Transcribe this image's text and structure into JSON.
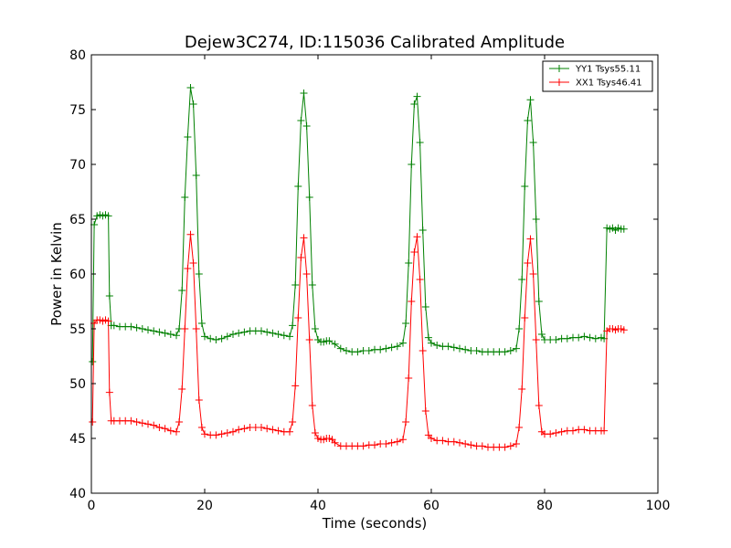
{
  "chart_data": {
    "type": "line",
    "title": "Dejew3C274, ID:115036 Calibrated Amplitude",
    "xlabel": "Time (seconds)",
    "ylabel": "Power in Kelvin",
    "xlim": [
      0,
      100
    ],
    "ylim": [
      40,
      80
    ],
    "xticks": [
      0,
      20,
      40,
      60,
      80,
      100
    ],
    "yticks": [
      40,
      45,
      50,
      55,
      60,
      65,
      70,
      75,
      80
    ],
    "grid": false,
    "legend_position": "top-right",
    "marker": "+",
    "series": [
      {
        "name": "YY1 Tsys55.11",
        "color": "#008000",
        "points": [
          [
            0.2,
            52
          ],
          [
            0.5,
            64.5
          ],
          [
            1.0,
            65.3
          ],
          [
            1.5,
            65.4
          ],
          [
            2.0,
            65.3
          ],
          [
            2.5,
            65.4
          ],
          [
            3.0,
            65.3
          ],
          [
            3.2,
            58
          ],
          [
            3.5,
            55.3
          ],
          [
            4,
            55.3
          ],
          [
            5,
            55.2
          ],
          [
            6,
            55.2
          ],
          [
            7,
            55.2
          ],
          [
            8,
            55.1
          ],
          [
            9,
            55.0
          ],
          [
            10,
            54.9
          ],
          [
            11,
            54.8
          ],
          [
            12,
            54.7
          ],
          [
            13,
            54.6
          ],
          [
            14,
            54.5
          ],
          [
            15,
            54.4
          ],
          [
            15.5,
            55.0
          ],
          [
            16,
            58.5
          ],
          [
            16.5,
            67
          ],
          [
            17,
            72.5
          ],
          [
            17.5,
            77
          ],
          [
            18,
            75.5
          ],
          [
            18.5,
            69
          ],
          [
            19,
            60
          ],
          [
            19.5,
            55.5
          ],
          [
            20,
            54.3
          ],
          [
            21,
            54.1
          ],
          [
            22,
            54.0
          ],
          [
            23,
            54.1
          ],
          [
            24,
            54.3
          ],
          [
            25,
            54.5
          ],
          [
            26,
            54.6
          ],
          [
            27,
            54.7
          ],
          [
            28,
            54.8
          ],
          [
            29,
            54.8
          ],
          [
            30,
            54.8
          ],
          [
            31,
            54.7
          ],
          [
            32,
            54.6
          ],
          [
            33,
            54.5
          ],
          [
            34,
            54.4
          ],
          [
            35,
            54.3
          ],
          [
            35.5,
            55.3
          ],
          [
            36,
            59
          ],
          [
            36.5,
            68
          ],
          [
            37,
            74
          ],
          [
            37.5,
            76.5
          ],
          [
            38,
            73.5
          ],
          [
            38.5,
            67
          ],
          [
            39,
            59
          ],
          [
            39.5,
            55
          ],
          [
            40,
            54.0
          ],
          [
            40.5,
            53.8
          ],
          [
            41,
            53.8
          ],
          [
            41.5,
            53.9
          ],
          [
            42,
            53.9
          ],
          [
            43,
            53.6
          ],
          [
            44,
            53.2
          ],
          [
            45,
            53.0
          ],
          [
            46,
            52.9
          ],
          [
            47,
            52.9
          ],
          [
            48,
            53.0
          ],
          [
            49,
            53.0
          ],
          [
            50,
            53.1
          ],
          [
            51,
            53.1
          ],
          [
            52,
            53.2
          ],
          [
            53,
            53.3
          ],
          [
            54,
            53.4
          ],
          [
            55,
            53.7
          ],
          [
            55.5,
            55.5
          ],
          [
            56,
            61
          ],
          [
            56.5,
            70
          ],
          [
            57,
            75.5
          ],
          [
            57.5,
            76.2
          ],
          [
            58,
            72
          ],
          [
            58.5,
            64
          ],
          [
            59,
            57
          ],
          [
            59.5,
            54.2
          ],
          [
            60,
            53.7
          ],
          [
            61,
            53.5
          ],
          [
            62,
            53.4
          ],
          [
            63,
            53.4
          ],
          [
            64,
            53.3
          ],
          [
            65,
            53.2
          ],
          [
            66,
            53.1
          ],
          [
            67,
            53.0
          ],
          [
            68,
            53.0
          ],
          [
            69,
            52.9
          ],
          [
            70,
            52.9
          ],
          [
            71,
            52.9
          ],
          [
            72,
            52.9
          ],
          [
            73,
            52.9
          ],
          [
            74,
            53.0
          ],
          [
            75,
            53.2
          ],
          [
            75.5,
            55.0
          ],
          [
            76,
            59.5
          ],
          [
            76.5,
            68
          ],
          [
            77,
            74
          ],
          [
            77.5,
            75.9
          ],
          [
            78,
            72
          ],
          [
            78.5,
            65
          ],
          [
            79,
            57.5
          ],
          [
            79.5,
            54.5
          ],
          [
            80,
            54.0
          ],
          [
            81,
            54.0
          ],
          [
            82,
            54.0
          ],
          [
            83,
            54.1
          ],
          [
            84,
            54.1
          ],
          [
            85,
            54.2
          ],
          [
            86,
            54.2
          ],
          [
            87,
            54.3
          ],
          [
            88,
            54.2
          ],
          [
            89,
            54.1
          ],
          [
            90,
            54.2
          ],
          [
            90.5,
            54.1
          ],
          [
            91,
            64.2
          ],
          [
            91.5,
            64.1
          ],
          [
            92,
            64.2
          ],
          [
            92.5,
            64.0
          ],
          [
            93,
            64.2
          ],
          [
            93.5,
            64.1
          ],
          [
            94,
            64.1
          ]
        ]
      },
      {
        "name": "XX1 Tsys46.41",
        "color": "#ff0000",
        "points": [
          [
            0.2,
            46.5
          ],
          [
            0.5,
            55.5
          ],
          [
            1.0,
            55.8
          ],
          [
            1.5,
            55.8
          ],
          [
            2.0,
            55.7
          ],
          [
            2.5,
            55.8
          ],
          [
            3.0,
            55.7
          ],
          [
            3.2,
            49.2
          ],
          [
            3.5,
            46.6
          ],
          [
            4,
            46.6
          ],
          [
            5,
            46.6
          ],
          [
            6,
            46.6
          ],
          [
            7,
            46.6
          ],
          [
            8,
            46.5
          ],
          [
            9,
            46.4
          ],
          [
            10,
            46.3
          ],
          [
            11,
            46.2
          ],
          [
            12,
            46.0
          ],
          [
            13,
            45.9
          ],
          [
            14,
            45.7
          ],
          [
            15,
            45.6
          ],
          [
            15.5,
            46.5
          ],
          [
            16,
            49.5
          ],
          [
            16.5,
            55
          ],
          [
            17,
            60.5
          ],
          [
            17.5,
            63.6
          ],
          [
            18,
            61
          ],
          [
            18.5,
            55
          ],
          [
            19,
            48.5
          ],
          [
            19.5,
            46
          ],
          [
            20,
            45.4
          ],
          [
            21,
            45.3
          ],
          [
            22,
            45.3
          ],
          [
            23,
            45.4
          ],
          [
            24,
            45.5
          ],
          [
            25,
            45.6
          ],
          [
            26,
            45.8
          ],
          [
            27,
            45.9
          ],
          [
            28,
            46.0
          ],
          [
            29,
            46.0
          ],
          [
            30,
            46.0
          ],
          [
            31,
            45.9
          ],
          [
            32,
            45.8
          ],
          [
            33,
            45.7
          ],
          [
            34,
            45.6
          ],
          [
            35,
            45.6
          ],
          [
            35.5,
            46.5
          ],
          [
            36,
            49.8
          ],
          [
            36.5,
            56
          ],
          [
            37,
            61.5
          ],
          [
            37.5,
            63.3
          ],
          [
            38,
            60
          ],
          [
            38.5,
            54
          ],
          [
            39,
            48
          ],
          [
            39.5,
            45.5
          ],
          [
            40,
            45.0
          ],
          [
            40.5,
            44.9
          ],
          [
            41,
            44.9
          ],
          [
            41.5,
            45.0
          ],
          [
            42,
            45.0
          ],
          [
            42.5,
            44.9
          ],
          [
            43,
            44.6
          ],
          [
            44,
            44.3
          ],
          [
            45,
            44.3
          ],
          [
            46,
            44.3
          ],
          [
            47,
            44.3
          ],
          [
            48,
            44.3
          ],
          [
            49,
            44.4
          ],
          [
            50,
            44.4
          ],
          [
            51,
            44.5
          ],
          [
            52,
            44.5
          ],
          [
            53,
            44.6
          ],
          [
            54,
            44.7
          ],
          [
            55,
            44.9
          ],
          [
            55.5,
            46.5
          ],
          [
            56,
            50.5
          ],
          [
            56.5,
            57.5
          ],
          [
            57,
            62
          ],
          [
            57.5,
            63.4
          ],
          [
            58,
            59.5
          ],
          [
            58.5,
            53
          ],
          [
            59,
            47.5
          ],
          [
            59.5,
            45.3
          ],
          [
            60,
            45.0
          ],
          [
            61,
            44.8
          ],
          [
            62,
            44.8
          ],
          [
            63,
            44.7
          ],
          [
            64,
            44.7
          ],
          [
            65,
            44.6
          ],
          [
            66,
            44.5
          ],
          [
            67,
            44.4
          ],
          [
            68,
            44.3
          ],
          [
            69,
            44.3
          ],
          [
            70,
            44.2
          ],
          [
            71,
            44.2
          ],
          [
            72,
            44.2
          ],
          [
            73,
            44.2
          ],
          [
            74,
            44.3
          ],
          [
            75,
            44.5
          ],
          [
            75.5,
            46.0
          ],
          [
            76,
            49.5
          ],
          [
            76.5,
            56
          ],
          [
            77,
            61
          ],
          [
            77.5,
            63.2
          ],
          [
            78,
            60
          ],
          [
            78.5,
            54
          ],
          [
            79,
            48
          ],
          [
            79.5,
            45.6
          ],
          [
            80,
            45.4
          ],
          [
            81,
            45.4
          ],
          [
            82,
            45.5
          ],
          [
            83,
            45.6
          ],
          [
            84,
            45.7
          ],
          [
            85,
            45.7
          ],
          [
            86,
            45.8
          ],
          [
            87,
            45.8
          ],
          [
            88,
            45.7
          ],
          [
            89,
            45.7
          ],
          [
            90,
            45.7
          ],
          [
            90.5,
            45.7
          ],
          [
            91,
            54.8
          ],
          [
            91.5,
            55.0
          ],
          [
            92,
            55.0
          ],
          [
            92.5,
            54.9
          ],
          [
            93,
            55.0
          ],
          [
            93.5,
            55.0
          ],
          [
            94,
            54.9
          ]
        ]
      }
    ]
  }
}
